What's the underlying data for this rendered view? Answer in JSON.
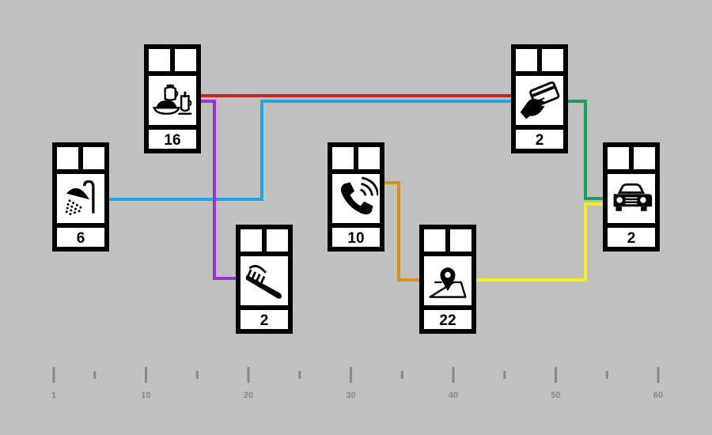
{
  "nodes": [
    {
      "id": "shower",
      "icon": "shower-icon",
      "value": "6"
    },
    {
      "id": "breakfast",
      "icon": "breakfast-icon",
      "value": "16"
    },
    {
      "id": "toothbrush",
      "icon": "toothbrush-icon",
      "value": "2"
    },
    {
      "id": "phone",
      "icon": "phone-icon",
      "value": "10"
    },
    {
      "id": "map",
      "icon": "map-pin-icon",
      "value": "22"
    },
    {
      "id": "card",
      "icon": "credit-card-icon",
      "value": "2"
    },
    {
      "id": "car",
      "icon": "car-icon",
      "value": "2"
    }
  ],
  "links": [
    {
      "from": "breakfast",
      "to": "card",
      "color": "#cc2222"
    },
    {
      "from": "shower",
      "to": "card",
      "color": "#1ea7e1"
    },
    {
      "from": "breakfast",
      "to": "toothbrush",
      "color": "#9b30d9"
    },
    {
      "from": "phone",
      "to": "map",
      "color": "#d4901e"
    },
    {
      "from": "map",
      "to": "car",
      "color": "#f5ec1a"
    },
    {
      "from": "card",
      "to": "car",
      "color": "#1f9e5a"
    }
  ],
  "axis": {
    "min": 1,
    "max": 60,
    "ticks": [
      1,
      10,
      20,
      30,
      40,
      50,
      60
    ],
    "tick_labels": [
      "1",
      "10",
      "20",
      "30",
      "40",
      "50",
      "60"
    ],
    "minor_ticks": [
      5,
      15,
      25,
      35,
      45,
      55
    ]
  },
  "colors": {
    "background": "#c0c0c0",
    "axis": "#888888",
    "card": "#000000"
  }
}
